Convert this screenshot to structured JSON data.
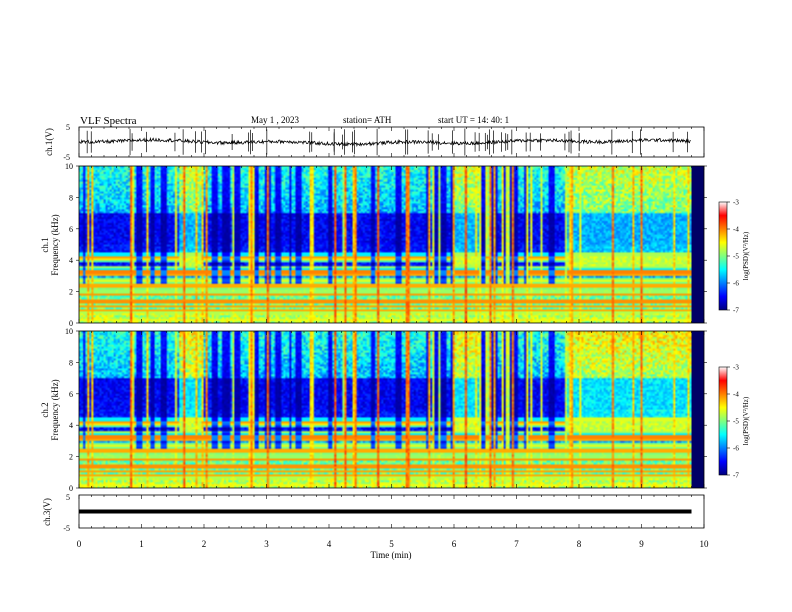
{
  "header": {
    "title": "VLF  Spectra",
    "date": "May 1  , 2023",
    "station": "station= ATH",
    "start": "start  UT  =   14: 40: 1"
  },
  "chart_data": {
    "type": "heatmap",
    "x_axis": {
      "label": "Time  (min)",
      "range": [
        0,
        10
      ],
      "ticks": [
        0,
        1,
        2,
        3,
        4,
        5,
        6,
        7,
        8,
        9,
        10
      ],
      "data_end": 9.8
    },
    "panels": [
      {
        "kind": "waveform",
        "ylabel": "ch.1(V)",
        "ylim": [
          -5,
          5
        ],
        "ticks": [
          5,
          -5
        ]
      },
      {
        "kind": "spectrogram",
        "ylabel_top": "ch.1",
        "ylabel": "Frequency  (kHz)",
        "ylim": [
          0,
          10
        ],
        "ticks": [
          0,
          2,
          4,
          6,
          8,
          10
        ],
        "colorbar": {
          "label": "log(PSD)(V²/Hz)",
          "range": [
            -7,
            -3
          ],
          "ticks": [
            -3,
            -4,
            -5,
            -6,
            -7
          ]
        },
        "bright_intervals_min": [
          [
            1.6,
            1.95
          ],
          [
            6.0,
            6.4
          ],
          [
            7.8,
            9.8
          ]
        ]
      },
      {
        "kind": "spectrogram",
        "ylabel_top": "ch.2",
        "ylabel": "Frequency  (kHz)",
        "ylim": [
          0,
          10
        ],
        "ticks": [
          0,
          2,
          4,
          6,
          8,
          10
        ],
        "colorbar": {
          "label": "log(PSD)(V²/Hz)",
          "range": [
            -7,
            -3
          ],
          "ticks": [
            -3,
            -4,
            -5,
            -6,
            -7
          ]
        },
        "bright_intervals_min": [
          [
            1.6,
            1.95
          ],
          [
            6.0,
            6.4
          ],
          [
            7.8,
            9.8
          ]
        ]
      },
      {
        "kind": "waveform",
        "ylabel": "ch.3(V)",
        "ylim": [
          -5,
          5
        ],
        "ticks": [
          5,
          -5
        ],
        "constant_level_v": 0
      }
    ]
  },
  "colors": {
    "scale": [
      "#00007f",
      "#0000ff",
      "#007fff",
      "#00ffff",
      "#7fff7f",
      "#ffff00",
      "#ff7f00",
      "#ff0000",
      "#ffffff"
    ]
  }
}
